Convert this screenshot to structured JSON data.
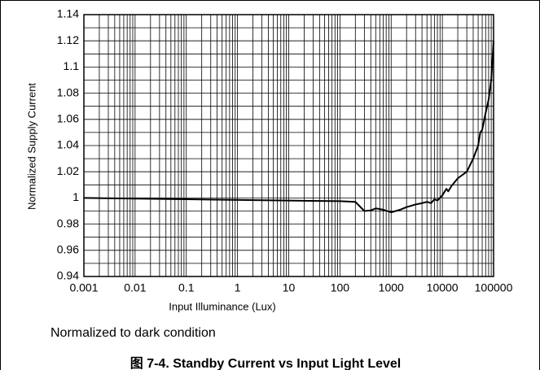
{
  "chart_data": {
    "type": "line",
    "xlabel": "Input Illuminance (Lux)",
    "ylabel": "Normalized Supply Current",
    "note": "Normalized to dark condition",
    "caption": "图 7-4. Standby Current vs Input Light Level",
    "xscale": "log",
    "xlim": [
      0.001,
      100000
    ],
    "xticks": [
      0.001,
      0.01,
      0.1,
      1,
      10,
      100,
      1000,
      10000,
      100000
    ],
    "ylim": [
      0.94,
      1.14
    ],
    "yticks": [
      0.94,
      0.96,
      0.98,
      1,
      1.02,
      1.04,
      1.06,
      1.08,
      1.1,
      1.12,
      1.14
    ],
    "grid": true,
    "x": [
      0.001,
      0.1,
      10,
      100,
      200,
      300,
      400,
      500,
      700,
      1000,
      1500,
      2000,
      3000,
      4000,
      5000,
      6000,
      7000,
      8000,
      10000,
      12000,
      13000,
      15000,
      20000,
      30000,
      40000,
      50000,
      55000,
      60000,
      70000,
      80000,
      90000,
      100000
    ],
    "series": [
      {
        "name": "Supply Current",
        "color": "#000000",
        "values": [
          1.0,
          0.999,
          0.998,
          0.9975,
          0.997,
          0.99,
          0.9905,
          0.992,
          0.991,
          0.989,
          0.991,
          0.993,
          0.995,
          0.996,
          0.997,
          0.996,
          0.999,
          0.998,
          1.002,
          1.007,
          1.005,
          1.009,
          1.015,
          1.02,
          1.03,
          1.04,
          1.05,
          1.052,
          1.065,
          1.075,
          1.09,
          1.12
        ]
      }
    ]
  }
}
